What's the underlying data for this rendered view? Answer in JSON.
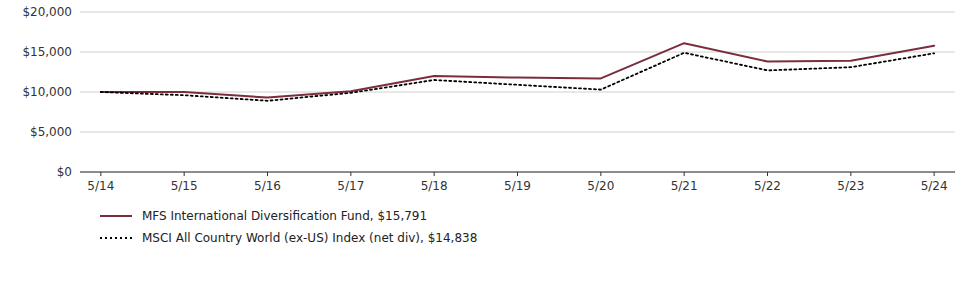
{
  "chart_data": {
    "type": "line",
    "categories": [
      "5/14",
      "5/15",
      "5/16",
      "5/17",
      "5/18",
      "5/19",
      "5/20",
      "5/21",
      "5/22",
      "5/23",
      "5/24"
    ],
    "series": [
      {
        "name": "MFS International Diversification Fund, $15,791",
        "color": "#7B2D3E",
        "line_style": "solid",
        "values": [
          10000,
          10000,
          9300,
          10100,
          12000,
          11800,
          11700,
          16100,
          13800,
          13900,
          15791
        ]
      },
      {
        "name": "MSCI All Country World (ex-US) Index (net div), $14,838",
        "color": "#000000",
        "line_style": "dotted",
        "values": [
          10000,
          9600,
          8900,
          9900,
          11500,
          10900,
          10300,
          14900,
          12700,
          13100,
          14838
        ]
      }
    ],
    "ylim": [
      0,
      20000
    ],
    "yticks": [
      {
        "value": 0,
        "label": "$0"
      },
      {
        "value": 5000,
        "label": "$5,000"
      },
      {
        "value": 10000,
        "label": "$10,000"
      },
      {
        "value": 15000,
        "label": "$15,000"
      },
      {
        "value": 20000,
        "label": "$20,000"
      }
    ],
    "grid": true,
    "legend": "bottom"
  }
}
